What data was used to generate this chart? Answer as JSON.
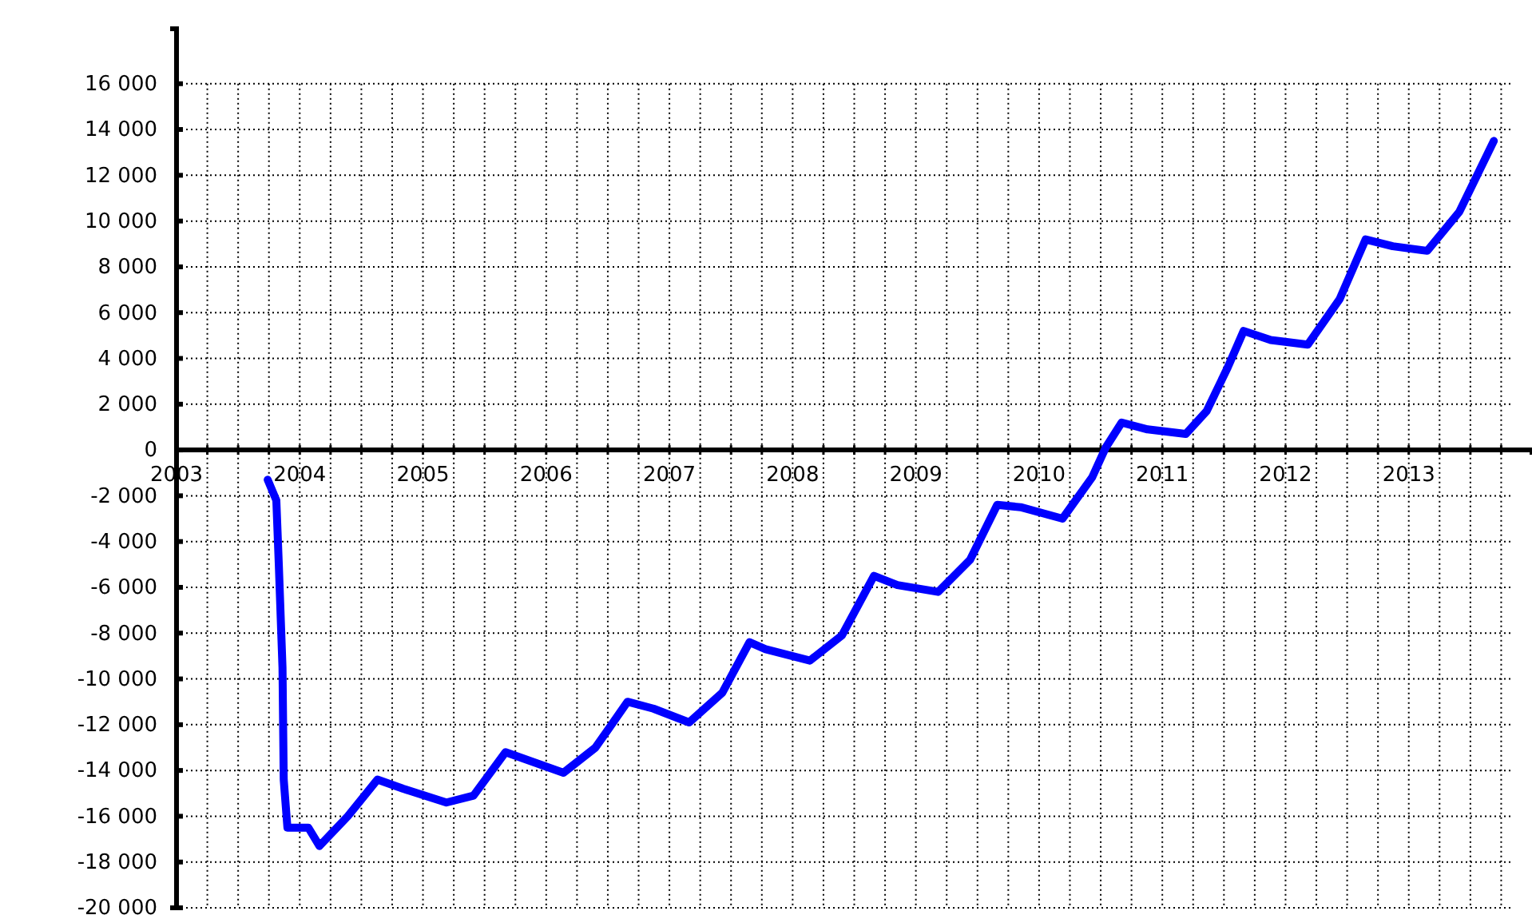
{
  "chart_data": {
    "type": "line",
    "x": [
      2003.74,
      2003.81,
      2003.83,
      2003.86,
      2003.87,
      2003.9,
      2004.07,
      2004.16,
      2004.39,
      2004.63,
      2004.84,
      2005.19,
      2005.41,
      2005.67,
      2005.93,
      2006.14,
      2006.4,
      2006.66,
      2006.87,
      2007.16,
      2007.43,
      2007.65,
      2007.78,
      2008.14,
      2008.4,
      2008.66,
      2008.85,
      2009.18,
      2009.44,
      2009.66,
      2009.85,
      2010.19,
      2010.43,
      2010.54,
      2010.67,
      2010.88,
      2011.19,
      2011.36,
      2011.53,
      2011.66,
      2011.88,
      2012.18,
      2012.44,
      2012.65,
      2012.87,
      2013.15,
      2013.41,
      2013.69
    ],
    "series": [
      {
        "color": "#0000ff",
        "values": [
          -1300,
          -2200,
          -5000,
          -9500,
          -14400,
          -16500,
          -16500,
          -17300,
          -16000,
          -14400,
          -14800,
          -15400,
          -15100,
          -13200,
          -13700,
          -14100,
          -13000,
          -11000,
          -11300,
          -11900,
          -10600,
          -8400,
          -8700,
          -9200,
          -8100,
          -5500,
          -5900,
          -6200,
          -4800,
          -2400,
          -2500,
          -3000,
          -1200,
          100,
          1200,
          900,
          700,
          1700,
          3600,
          5200,
          4800,
          4600,
          6600,
          9200,
          8900,
          8700,
          10400,
          13500
        ]
      }
    ],
    "xlim": [
      2003,
      2014
    ],
    "ylim": [
      -20000,
      18400
    ],
    "xticks": [
      2003,
      {
        "value": 2003.25,
        "label": null
      },
      {
        "value": 2003.5,
        "label": null
      },
      {
        "value": 2003.75,
        "label": null
      },
      2004,
      {
        "value": 2004.25,
        "label": null
      },
      {
        "value": 2004.5,
        "label": null
      },
      {
        "value": 2004.75,
        "label": null
      },
      2005,
      {
        "value": 2005.25,
        "label": null
      },
      {
        "value": 2005.5,
        "label": null
      },
      {
        "value": 2005.75,
        "label": null
      },
      2006,
      {
        "value": 2006.25,
        "label": null
      },
      {
        "value": 2006.5,
        "label": null
      },
      {
        "value": 2006.75,
        "label": null
      },
      2007,
      {
        "value": 2007.25,
        "label": null
      },
      {
        "value": 2007.5,
        "label": null
      },
      {
        "value": 2007.75,
        "label": null
      },
      2008,
      {
        "value": 2008.25,
        "label": null
      },
      {
        "value": 2008.5,
        "label": null
      },
      {
        "value": 2008.75,
        "label": null
      },
      2009,
      {
        "value": 2009.25,
        "label": null
      },
      {
        "value": 2009.5,
        "label": null
      },
      {
        "value": 2009.75,
        "label": null
      },
      2010,
      {
        "value": 2010.25,
        "label": null
      },
      {
        "value": 2010.5,
        "label": null
      },
      {
        "value": 2010.75,
        "label": null
      },
      2011,
      {
        "value": 2011.25,
        "label": null
      },
      {
        "value": 2011.5,
        "label": null
      },
      {
        "value": 2011.75,
        "label": null
      },
      2012,
      {
        "value": 2012.25,
        "label": null
      },
      {
        "value": 2012.5,
        "label": null
      },
      {
        "value": 2012.75,
        "label": null
      },
      2013,
      {
        "value": 2013.25,
        "label": null
      },
      {
        "value": 2013.5,
        "label": null
      },
      {
        "value": 2013.75,
        "label": null
      }
    ],
    "yticks": [
      {
        "value": -20000,
        "label": "-20 000"
      },
      {
        "value": -18000,
        "label": "-18 000"
      },
      {
        "value": -16000,
        "label": "-16 000"
      },
      {
        "value": -14000,
        "label": "-14 000"
      },
      {
        "value": -12000,
        "label": "-12 000"
      },
      {
        "value": -10000,
        "label": "-10 000"
      },
      {
        "value": -8000,
        "label": "-8 000"
      },
      {
        "value": -6000,
        "label": "-6 000"
      },
      {
        "value": -4000,
        "label": "-4 000"
      },
      {
        "value": -2000,
        "label": "-2 000"
      },
      0,
      {
        "value": 2000,
        "label": "2 000"
      },
      {
        "value": 4000,
        "label": "4 000"
      },
      {
        "value": 6000,
        "label": "6 000"
      },
      {
        "value": 8000,
        "label": "8 000"
      },
      {
        "value": 10000,
        "label": "10 000"
      },
      {
        "value": 12000,
        "label": "12 000"
      },
      {
        "value": 14000,
        "label": "14 000"
      },
      {
        "value": 16000,
        "label": "16 000"
      }
    ],
    "grid": true,
    "line_style": "solid"
  }
}
